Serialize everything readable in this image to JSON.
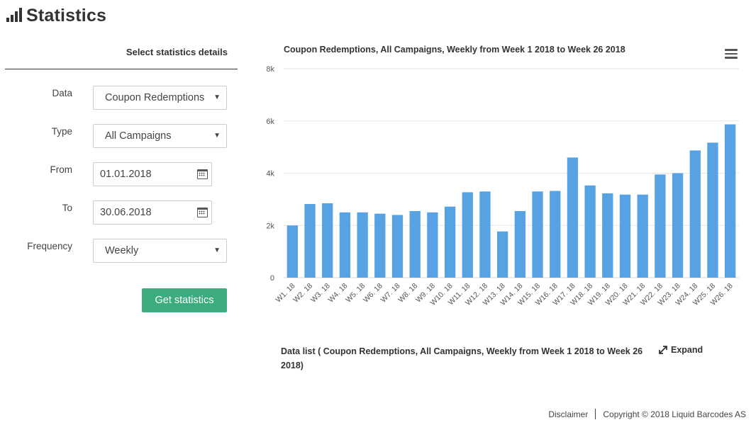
{
  "header": {
    "title": "Statistics",
    "icon": "bar-chart-icon"
  },
  "panel": {
    "heading": "Select statistics details",
    "labels": {
      "data": "Data",
      "type": "Type",
      "from": "From",
      "to": "To",
      "frequency": "Frequency"
    },
    "data_value": "Coupon Redemptions",
    "type_value": "All Campaigns",
    "from_value": "01.01.2018",
    "to_value": "30.06.2018",
    "frequency_value": "Weekly",
    "submit_label": "Get statistics",
    "submit_color": "#3cab7d"
  },
  "chart": {
    "title": "Coupon Redemptions, All Campaigns, Weekly from Week 1 2018 to Week 26 2018",
    "menu_icon": "hamburger-menu-icon"
  },
  "chart_data": {
    "type": "bar",
    "title": "Coupon Redemptions, All Campaigns, Weekly from Week 1 2018 to Week 26 2018",
    "xlabel": "",
    "ylabel": "",
    "ylim": [
      0,
      8000
    ],
    "yticks": [
      0,
      2000,
      4000,
      6000,
      8000
    ],
    "ytick_labels": [
      "0",
      "2k",
      "4k",
      "6k",
      "8k"
    ],
    "grid": true,
    "bar_color": "#56a2e3",
    "categories": [
      "W1. 18",
      "W2. 18",
      "W3. 18",
      "W4. 18",
      "W5. 18",
      "W6. 18",
      "W7. 18",
      "W8. 18",
      "W9. 18",
      "W10. 18",
      "W11. 18",
      "W12. 18",
      "W13. 18",
      "W14. 18",
      "W15. 18",
      "W16. 18",
      "W17. 18",
      "W18. 18",
      "W19. 18",
      "W20. 18",
      "W21. 18",
      "W22. 18",
      "W23. 18",
      "W24. 18",
      "W25. 18",
      "W26. 18"
    ],
    "values": [
      2000,
      2820,
      2850,
      2500,
      2500,
      2450,
      2400,
      2550,
      2500,
      2720,
      3270,
      3300,
      1770,
      2550,
      3300,
      3320,
      4600,
      3530,
      3230,
      3180,
      3180,
      3950,
      4000,
      4870,
      5170,
      5870
    ]
  },
  "datalist": {
    "title": "Data list ( Coupon Redemptions, All Campaigns, Weekly from Week 1 2018 to Week 26 2018)",
    "expand_label": "Expand"
  },
  "footer": {
    "disclaimer": "Disclaimer",
    "copyright": "Copyright © 2018 Liquid Barcodes AS"
  }
}
